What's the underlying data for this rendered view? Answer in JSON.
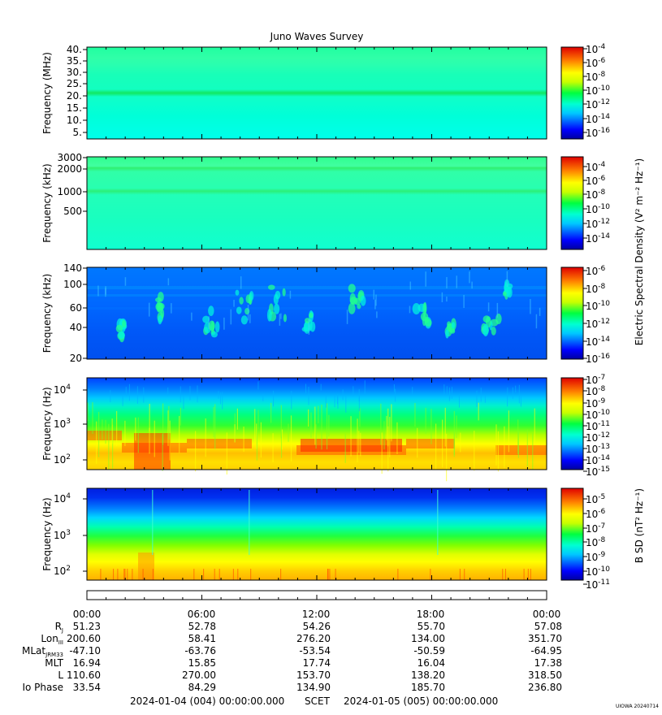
{
  "title": "Juno Waves Survey",
  "stamp": "UIOWA 20240714",
  "ephem_header": {
    "scet_start": "2024-01-04 (004) 00:00:00.000",
    "scet_label": "SCET",
    "scet_end": "2024-01-05 (005) 00:00:00.000"
  },
  "panels": [
    {
      "ylabel": "Frequency (MHz)",
      "yticks": [
        "40.",
        "35.",
        "30.",
        "25.",
        "20.",
        "15.",
        "10.",
        "5."
      ],
      "colorbar_ticks": [
        [
          "10",
          "-4"
        ],
        [
          "10",
          "-6"
        ],
        [
          "10",
          "-8"
        ],
        [
          "10",
          "-10"
        ],
        [
          "10",
          "-12"
        ],
        [
          "10",
          "-14"
        ],
        [
          "10",
          "-16"
        ]
      ]
    },
    {
      "ylabel": "Frequency (kHz)",
      "yticks": [
        "3000",
        "2000",
        "1000",
        "500"
      ],
      "colorbar_ticks": [
        [
          "10",
          "-4"
        ],
        [
          "10",
          "-6"
        ],
        [
          "10",
          "-8"
        ],
        [
          "10",
          "-10"
        ],
        [
          "10",
          "-12"
        ],
        [
          "10",
          "-14"
        ]
      ]
    },
    {
      "ylabel": "Frequency (kHz)",
      "yticks": [
        "140",
        "100",
        "60",
        "40",
        "20"
      ],
      "colorbar_ticks": [
        [
          "10",
          "-6"
        ],
        [
          "10",
          "-8"
        ],
        [
          "10",
          "-10"
        ],
        [
          "10",
          "-12"
        ],
        [
          "10",
          "-14"
        ],
        [
          "10",
          "-16"
        ]
      ]
    },
    {
      "ylabel": "Frequency (Hz)",
      "yticks": [
        [
          "10",
          "4"
        ],
        [
          "10",
          "3"
        ],
        [
          "10",
          "2"
        ]
      ],
      "colorbar_ticks": [
        [
          "10",
          "-7"
        ],
        [
          "10",
          "-8"
        ],
        [
          "10",
          "-9"
        ],
        [
          "10",
          "-10"
        ],
        [
          "10",
          "-11"
        ],
        [
          "10",
          "-12"
        ],
        [
          "10",
          "-13"
        ],
        [
          "10",
          "-14"
        ],
        [
          "10",
          "-15"
        ]
      ]
    },
    {
      "ylabel": "Frequency (Hz)",
      "yticks": [
        [
          "10",
          "4"
        ],
        [
          "10",
          "3"
        ],
        [
          "10",
          "2"
        ]
      ],
      "colorbar_ticks": [
        [
          "10",
          "-5"
        ],
        [
          "10",
          "-6"
        ],
        [
          "10",
          "-7"
        ],
        [
          "10",
          "-8"
        ],
        [
          "10",
          "-9"
        ],
        [
          "10",
          "-10"
        ],
        [
          "10",
          "-11"
        ]
      ]
    }
  ],
  "colorbar_labels": {
    "electric": "Electric Spectral Density (V² m⁻² Hz⁻¹)",
    "magnetic": "B SD (nT² Hz⁻¹)"
  },
  "chart_data": {
    "type": "heatmap",
    "title": "Juno Waves Survey",
    "x_time_labels": [
      "00:00",
      "06:00",
      "12:00",
      "18:00",
      "00:00"
    ],
    "ephemeris": [
      {
        "label": "R",
        "sub": "J",
        "values": [
          "51.23",
          "52.78",
          "54.26",
          "55.70",
          "57.08"
        ]
      },
      {
        "label": "Lon",
        "sub": "III",
        "values": [
          "200.60",
          "58.41",
          "276.20",
          "134.00",
          "351.70"
        ]
      },
      {
        "label": "MLat",
        "sub": "JRM33",
        "values": [
          "-47.10",
          "-63.76",
          "-53.54",
          "-50.59",
          "-64.95"
        ]
      },
      {
        "label": "MLT",
        "sub": "",
        "values": [
          "16.94",
          "15.85",
          "17.74",
          "16.04",
          "17.38"
        ]
      },
      {
        "label": "L",
        "sub": "",
        "values": [
          "110.60",
          "270.00",
          "153.70",
          "138.20",
          "318.50"
        ]
      },
      {
        "label": "Io Phase",
        "sub": "",
        "values": [
          "33.54",
          "84.29",
          "134.90",
          "185.70",
          "236.80"
        ]
      }
    ],
    "colormap": "rainbow (blue low to red high)"
  }
}
